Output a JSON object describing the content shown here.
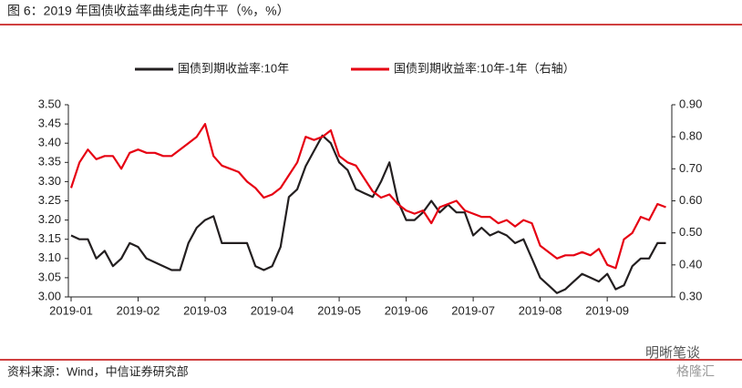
{
  "chart_data": {
    "type": "line",
    "title": "图 6：2019 年国债收益率曲线走向牛平（%，%）",
    "source": "资料来源：Wind，中信证券研究部",
    "watermark": [
      "明晰笔谈",
      "格隆汇"
    ],
    "categories": [
      "2019-01",
      null,
      null,
      null,
      null,
      null,
      null,
      null,
      "2019-02",
      null,
      null,
      null,
      null,
      null,
      null,
      null,
      "2019-03",
      null,
      null,
      null,
      null,
      null,
      null,
      null,
      "2019-04",
      null,
      null,
      null,
      null,
      null,
      null,
      null,
      "2019-05",
      null,
      null,
      null,
      null,
      null,
      null,
      null,
      "2019-06",
      null,
      null,
      null,
      null,
      null,
      null,
      null,
      "2019-07",
      null,
      null,
      null,
      null,
      null,
      null,
      null,
      "2019-08",
      null,
      null,
      null,
      null,
      null,
      null,
      null,
      "2019-09",
      null,
      null,
      null,
      null,
      null,
      null,
      null
    ],
    "series": [
      {
        "name": "国债到期收益率:10年",
        "color": "#231f20",
        "axis": "y",
        "values": [
          3.16,
          3.15,
          3.15,
          3.1,
          3.12,
          3.08,
          3.1,
          3.14,
          3.13,
          3.1,
          3.09,
          3.08,
          3.07,
          3.07,
          3.14,
          3.18,
          3.2,
          3.21,
          3.14,
          3.14,
          3.14,
          3.14,
          3.08,
          3.07,
          3.08,
          3.13,
          3.26,
          3.28,
          3.34,
          3.38,
          3.42,
          3.4,
          3.35,
          3.33,
          3.28,
          3.27,
          3.26,
          3.3,
          3.35,
          3.25,
          3.2,
          3.2,
          3.22,
          3.25,
          3.22,
          3.24,
          3.22,
          3.22,
          3.16,
          3.18,
          3.16,
          3.17,
          3.16,
          3.14,
          3.15,
          3.1,
          3.05,
          3.03,
          3.01,
          3.02,
          3.04,
          3.06,
          3.05,
          3.04,
          3.06,
          3.02,
          3.03,
          3.08,
          3.1,
          3.1,
          3.14,
          3.14
        ]
      },
      {
        "name": "国债到期收益率:10年-1年（右轴）",
        "color": "#e60012",
        "axis": "y2",
        "values": [
          0.64,
          0.72,
          0.76,
          0.73,
          0.74,
          0.74,
          0.7,
          0.75,
          0.76,
          0.75,
          0.75,
          0.74,
          0.74,
          0.76,
          0.78,
          0.8,
          0.84,
          0.74,
          0.71,
          0.7,
          0.69,
          0.66,
          0.64,
          0.61,
          0.62,
          0.64,
          0.68,
          0.72,
          0.8,
          0.79,
          0.8,
          0.82,
          0.74,
          0.72,
          0.71,
          0.67,
          0.63,
          0.61,
          0.62,
          0.59,
          0.57,
          0.56,
          0.57,
          0.53,
          0.58,
          0.59,
          0.6,
          0.57,
          0.56,
          0.55,
          0.55,
          0.53,
          0.54,
          0.52,
          0.54,
          0.53,
          0.46,
          0.44,
          0.42,
          0.43,
          0.43,
          0.44,
          0.43,
          0.45,
          0.4,
          0.39,
          0.48,
          0.5,
          0.55,
          0.54,
          0.59,
          0.58
        ]
      }
    ],
    "ylim": [
      3.0,
      3.5
    ],
    "yticks": [
      {
        "value": 3.0,
        "label": "3.00"
      },
      {
        "value": 3.05,
        "label": "3.05"
      },
      {
        "value": 3.1,
        "label": "3.10"
      },
      {
        "value": 3.15,
        "label": "3.15"
      },
      {
        "value": 3.2,
        "label": "3.20"
      },
      {
        "value": 3.25,
        "label": "3.25"
      },
      {
        "value": 3.3,
        "label": "3.30"
      },
      {
        "value": 3.35,
        "label": "3.35"
      },
      {
        "value": 3.4,
        "label": "3.40"
      },
      {
        "value": 3.45,
        "label": "3.45"
      },
      {
        "value": 3.5,
        "label": "3.50"
      }
    ],
    "y2lim": [
      0.3,
      0.9
    ],
    "y2ticks": [
      {
        "value": 0.3,
        "label": "0.30"
      },
      {
        "value": 0.4,
        "label": "0.40"
      },
      {
        "value": 0.5,
        "label": "0.50"
      },
      {
        "value": 0.6,
        "label": "0.60"
      },
      {
        "value": 0.7,
        "label": "0.70"
      },
      {
        "value": 0.8,
        "label": "0.80"
      },
      {
        "value": 0.9,
        "label": "0.90"
      }
    ],
    "grid": false,
    "legend": "top"
  }
}
